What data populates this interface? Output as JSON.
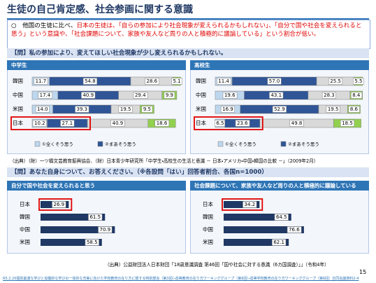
{
  "title": "生徒の自己肯定感、社会参画に関する意識",
  "intro": [
    "○　他国の生徒に比べ、",
    "日本の生徒は、「自らの参加により社会現象が変えられるかもしれない」、「自分で国や社会を変えられると思う」という意識や、「社会課題について、家族や友人など周りの人と積極的に議論している」という割合が低い。"
  ],
  "sections": [
    {
      "question": "【問】私の参加により、変えてほしい社会現象が少し変えられるかもしれない。",
      "charts": [
        {
          "type": "stacked_bar",
          "title": "中学生",
          "categories": [
            "韓国",
            "中国",
            "米国",
            "日本"
          ],
          "xlim": [
            0,
            100
          ],
          "series": [
            {
              "name": "①全くそう思う",
              "color": "#bdd7ee",
              "values": [
                11.7,
                17.4,
                14.0,
                10.2
              ],
              "value_labels": [
                "11.7",
                "17.4",
                "14.0",
                "10.2"
              ]
            },
            {
              "name": "②まあそう思う",
              "color": "#2f5597",
              "values": [
                54.8,
                40.9,
                39.3,
                27.1
              ],
              "value_labels": [
                "54.8",
                "40.9",
                "39.3",
                "27.1"
              ]
            },
            {
              "color": "#d9d9d9",
              "values": [
                28.6,
                29.4,
                19.5,
                40.9
              ],
              "value_labels": [
                "28.6",
                "29.4",
                "19.5",
                "40.9"
              ]
            },
            {
              "color": "#92d050",
              "values": [
                5.1,
                9.9,
                9.5,
                18.6
              ],
              "value_labels": [
                "5.1",
                "9.9",
                "9.5",
                "18.6"
              ]
            }
          ]
        },
        {
          "type": "stacked_bar",
          "title": "高校生",
          "categories": [
            "韓国",
            "中国",
            "米国",
            "日本"
          ],
          "xlim": [
            0,
            100
          ],
          "series": [
            {
              "name": "①全くそう思う",
              "color": "#bdd7ee",
              "values": [
                11.4,
                19.6,
                16.9,
                6.5
              ],
              "value_labels": [
                "11.4",
                "19.6",
                "16.9",
                "6.5"
              ]
            },
            {
              "name": "②まあそう思う",
              "color": "#2f5597",
              "values": [
                57.0,
                43.1,
                52.9,
                23.6
              ],
              "value_labels": [
                "57.0",
                "43.1",
                "52.9",
                "23.6"
              ]
            },
            {
              "color": "#d9d9d9",
              "values": [
                25.5,
                28.3,
                19.5,
                49.8
              ],
              "value_labels": [
                "25.5",
                "28.3",
                "19.5",
                "49.8"
              ]
            },
            {
              "color": "#92d050",
              "values": [
                5.5,
                8.4,
                8.6,
                18.5
              ],
              "value_labels": [
                "5.5",
                "8.4",
                "8.6",
                "18.5"
              ]
            }
          ]
        }
      ],
      "source": "（出典）（財）一ツ橋文芸教育振興協会、（財）日本青少年研究所「中学生・高校生の生活と意識 － 日本・アメリカ・中国・韓国の比較 －」（2009年2月）"
    },
    {
      "question": "【問】あなた自身について、お答えください。（※各設問「はい」回答者割合、各国n=1000）",
      "charts": [
        {
          "type": "bar",
          "title": "自分で国や社会を変えられると思う",
          "categories": [
            "日本",
            "韓国",
            "中国",
            "米国"
          ],
          "values": [
            26.9,
            61.5,
            70.9,
            58.5
          ],
          "color": "#1f3864",
          "xlim": [
            0,
            100
          ]
        },
        {
          "type": "bar",
          "title": "社会課題について、家族や友人など周りの人と積極的に議論している",
          "categories": [
            "日本",
            "韓国",
            "中国",
            "米国"
          ],
          "values": [
            34.2,
            64.5,
            76.6,
            62.1
          ],
          "color": "#1f3864",
          "xlim": [
            0,
            100
          ]
        }
      ],
      "source": "（出典）公益財団法人日本財団「18歳意識調査 第46回「国や社会に対する意識（6カ国調査）」」（令和4年）"
    }
  ],
  "page_number": "15",
  "footer": "R5.2.20個別最適な学びと協働的な学びの一体的な充実に向けた学校教育の在り方に関する特別部会（第3回）・高等教育の在り方ワーキンググループ（第6回）・高等学校教育の在り方ワーキンググループ（第6回）合同会議資料2-4"
}
